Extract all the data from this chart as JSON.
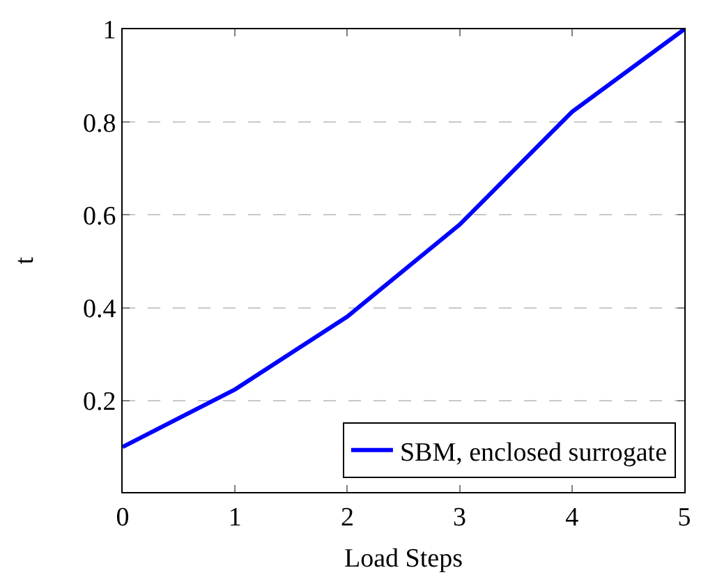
{
  "chart_data": {
    "type": "line",
    "xlabel": "Load Steps",
    "ylabel": "t",
    "x": [
      0,
      1,
      2,
      3,
      4,
      5
    ],
    "series": [
      {
        "name": "SBM, enclosed surrogate",
        "color": "#0000ff",
        "values": [
          0.1,
          0.224,
          0.381,
          0.579,
          0.822,
          1.0
        ]
      }
    ],
    "xlim": [
      0,
      5
    ],
    "xticks": [
      0,
      1,
      2,
      3,
      4,
      5
    ],
    "ylim": [
      0.003,
      1
    ],
    "yticks": [
      0.2,
      0.4,
      0.6,
      0.8,
      1
    ],
    "grid": "y",
    "legend": "bottom right",
    "marker": "none",
    "line_style": "solid"
  }
}
